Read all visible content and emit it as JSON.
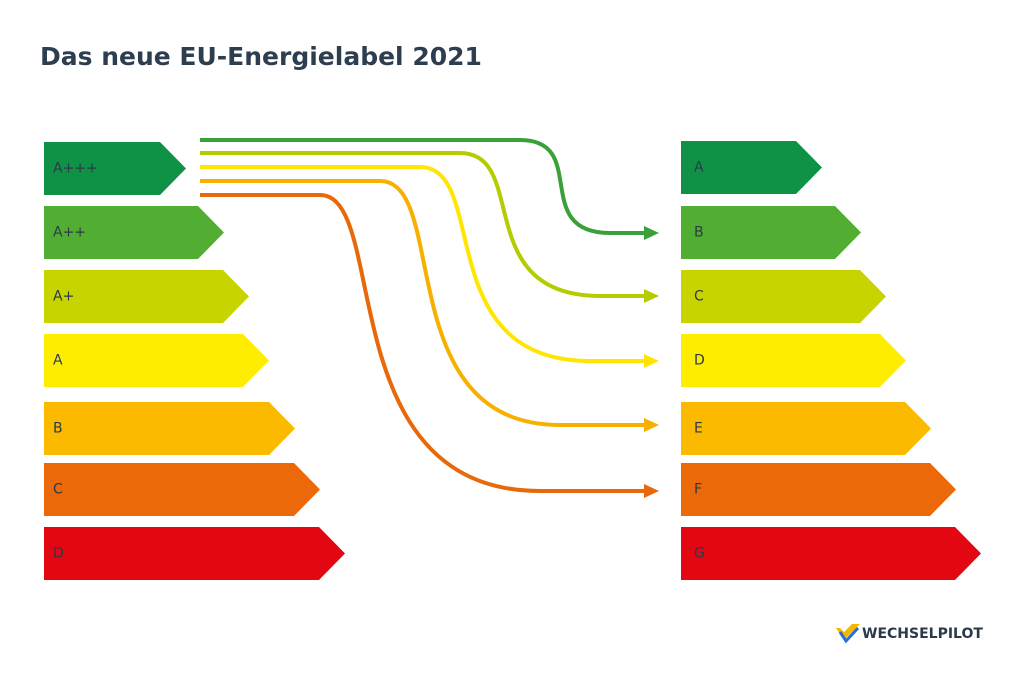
{
  "header": {
    "title": "Das neue EU-Energielabel 2021"
  },
  "old_label": {
    "classes": [
      "A+++",
      "A++",
      "A+",
      "A",
      "B",
      "C",
      "D"
    ]
  },
  "new_label": {
    "classes": [
      "A",
      "B",
      "C",
      "D",
      "E",
      "F",
      "G"
    ]
  },
  "footer": {
    "brand": "WECHSELPILOT"
  }
}
